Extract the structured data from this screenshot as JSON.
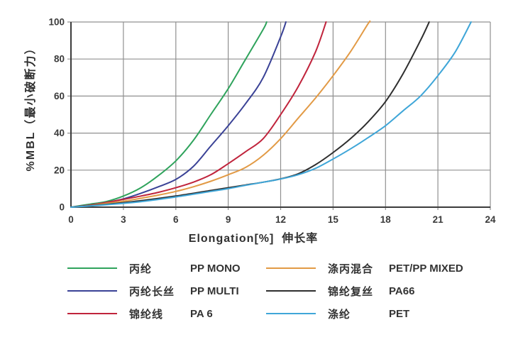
{
  "chart_data": {
    "type": "line",
    "title": "",
    "xlabel": "Elongation[%]  伸长率",
    "ylabel": "%MBL（最小破断力）",
    "xlim": [
      0,
      24
    ],
    "ylim": [
      0,
      100
    ],
    "xticks": [
      0,
      3,
      6,
      9,
      12,
      15,
      18,
      21,
      24
    ],
    "yticks": [
      0,
      20,
      40,
      60,
      80,
      100
    ],
    "grid": true,
    "legend_position": "bottom",
    "colors": {
      "grid": "#909090",
      "axis": "#3c3c3c",
      "tick_text": "#3a3a3a"
    },
    "series": [
      {
        "label_cn": "丙纶",
        "label_en": "PP MONO",
        "color": "#2fa35c",
        "points": [
          [
            0,
            0
          ],
          [
            1,
            1.5
          ],
          [
            2,
            3
          ],
          [
            3,
            6
          ],
          [
            4,
            10.5
          ],
          [
            5,
            17
          ],
          [
            6,
            25
          ],
          [
            7,
            36
          ],
          [
            8,
            50
          ],
          [
            9,
            64
          ],
          [
            10,
            80
          ],
          [
            11,
            96
          ],
          [
            11.2,
            100
          ]
        ]
      },
      {
        "label_cn": "丙纶长丝",
        "label_en": "PP MULTI",
        "color": "#3a4296",
        "points": [
          [
            0,
            0
          ],
          [
            1,
            1
          ],
          [
            2,
            2.5
          ],
          [
            3,
            4.5
          ],
          [
            4,
            7.5
          ],
          [
            5,
            11
          ],
          [
            6,
            15
          ],
          [
            7,
            22
          ],
          [
            8,
            33
          ],
          [
            9,
            44
          ],
          [
            10,
            56
          ],
          [
            11,
            70
          ],
          [
            12,
            92
          ],
          [
            12.3,
            100
          ]
        ]
      },
      {
        "label_cn": "锦纶线",
        "label_en": "PA 6",
        "color": "#c0243c",
        "points": [
          [
            0,
            0
          ],
          [
            1,
            1
          ],
          [
            2,
            2.5
          ],
          [
            3,
            4.2
          ],
          [
            4,
            6
          ],
          [
            5,
            8
          ],
          [
            6,
            10.5
          ],
          [
            7,
            13.5
          ],
          [
            8,
            17.5
          ],
          [
            9,
            23.5
          ],
          [
            10,
            30
          ],
          [
            11,
            37
          ],
          [
            12,
            50
          ],
          [
            13,
            65
          ],
          [
            14,
            84
          ],
          [
            14.6,
            100
          ]
        ]
      },
      {
        "label_cn": "涤丙混合",
        "label_en": "PET/PP MIXED",
        "color": "#e29a45",
        "points": [
          [
            0,
            0
          ],
          [
            1,
            0.8
          ],
          [
            2,
            2
          ],
          [
            3,
            3.2
          ],
          [
            4,
            4.8
          ],
          [
            5,
            6.5
          ],
          [
            6,
            8.5
          ],
          [
            7,
            11
          ],
          [
            8,
            14
          ],
          [
            9,
            17.5
          ],
          [
            10,
            21.5
          ],
          [
            11,
            28
          ],
          [
            12,
            37
          ],
          [
            13,
            48
          ],
          [
            14,
            59
          ],
          [
            15,
            71
          ],
          [
            16,
            84
          ],
          [
            17,
            99
          ],
          [
            17.1,
            100
          ]
        ]
      },
      {
        "label_cn": "锦纶复丝",
        "label_en": "PA66",
        "color": "#2e2e2e",
        "points": [
          [
            0,
            0
          ],
          [
            2,
            1.5
          ],
          [
            4,
            3.5
          ],
          [
            6,
            6
          ],
          [
            8,
            9
          ],
          [
            9,
            10.5
          ],
          [
            10,
            12
          ],
          [
            11,
            13.5
          ],
          [
            12,
            15.3
          ],
          [
            13,
            18
          ],
          [
            14,
            23
          ],
          [
            15,
            29.5
          ],
          [
            16,
            37
          ],
          [
            17,
            46
          ],
          [
            18,
            57
          ],
          [
            19,
            72
          ],
          [
            20,
            90
          ],
          [
            20.5,
            100
          ]
        ]
      },
      {
        "label_cn": "涤纶",
        "label_en": "PET",
        "color": "#3fa6d8",
        "points": [
          [
            0,
            0
          ],
          [
            2,
            1.3
          ],
          [
            4,
            3
          ],
          [
            6,
            5.5
          ],
          [
            8,
            8.5
          ],
          [
            9,
            10
          ],
          [
            10,
            11.8
          ],
          [
            11,
            13.5
          ],
          [
            12,
            15.2
          ],
          [
            13,
            17.5
          ],
          [
            14,
            21
          ],
          [
            15,
            26
          ],
          [
            16,
            31.5
          ],
          [
            17,
            37.5
          ],
          [
            18,
            44
          ],
          [
            19,
            52
          ],
          [
            20,
            60
          ],
          [
            21,
            71
          ],
          [
            22,
            84
          ],
          [
            22.9,
            100
          ]
        ]
      }
    ]
  }
}
